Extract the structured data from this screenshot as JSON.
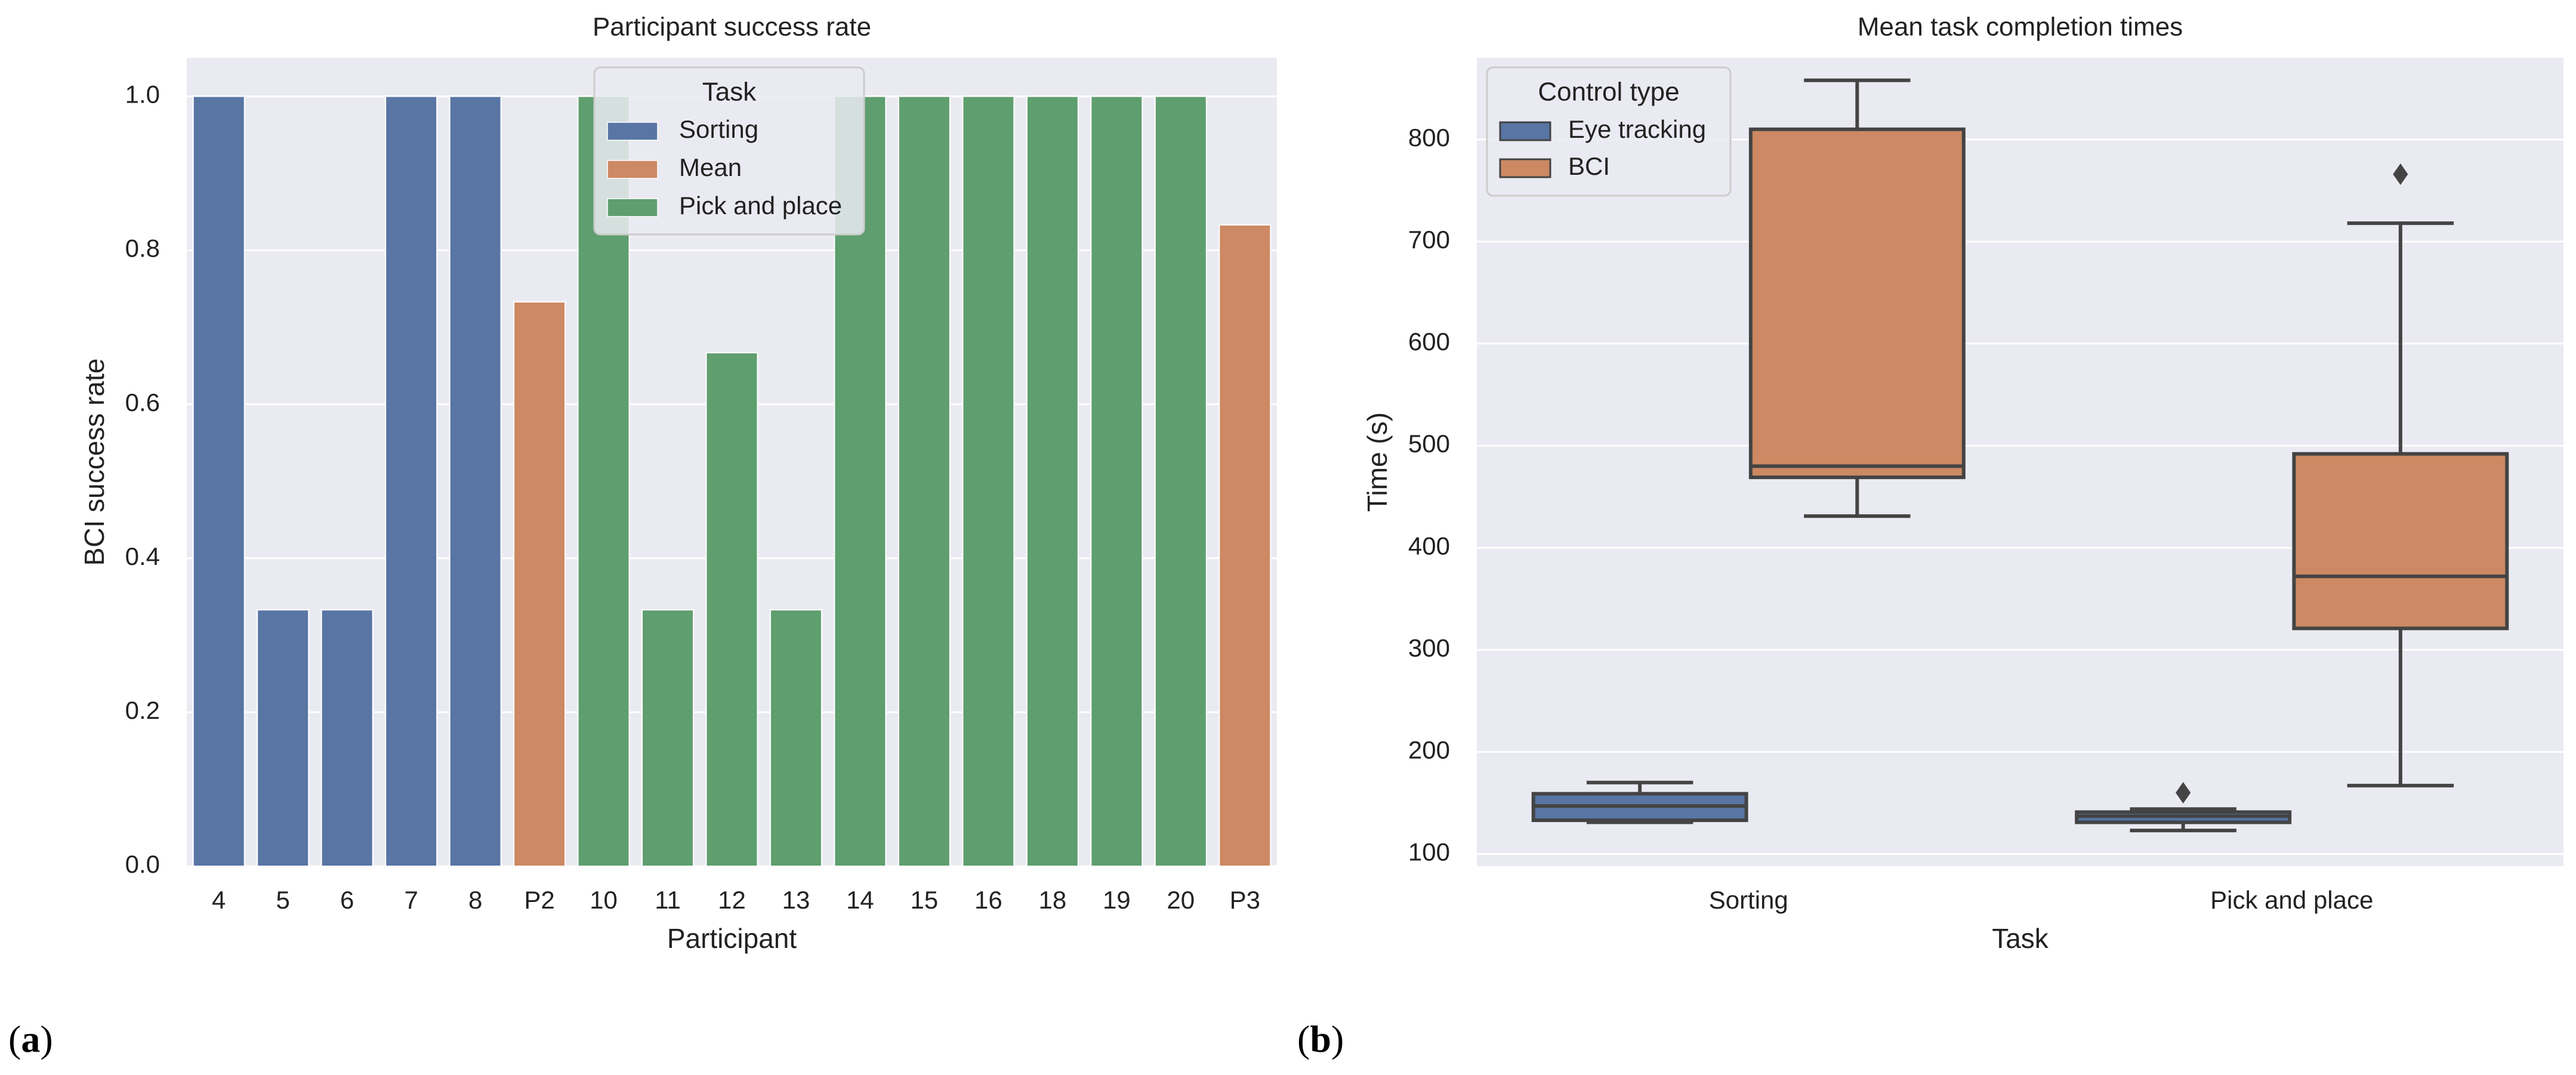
{
  "colors": {
    "sorting": "#5875a4",
    "mean": "#cc8963",
    "pick_place": "#5f9e6e",
    "eye_tracking": "#5875a4",
    "bci": "#cc8963",
    "background": "#eaeaf2",
    "grid": "#ffffff",
    "box_line": "#444444"
  },
  "panel_labels": {
    "a": "a",
    "b": "b"
  },
  "chart_data": [
    {
      "type": "bar",
      "title": "Participant success rate",
      "xlabel": "Participant",
      "ylabel": "BCI success rate",
      "ylim": [
        0,
        1.05
      ],
      "yticks": [
        0.0,
        0.2,
        0.4,
        0.6,
        0.8,
        1.0
      ],
      "ytick_labels": [
        "0.0",
        "0.2",
        "0.4",
        "0.6",
        "0.8",
        "1.0"
      ],
      "categories": [
        "4",
        "5",
        "6",
        "7",
        "8",
        "P2",
        "10",
        "11",
        "12",
        "13",
        "14",
        "15",
        "16",
        "18",
        "19",
        "20",
        "P3"
      ],
      "values": [
        1.0,
        0.333,
        0.333,
        1.0,
        1.0,
        0.733,
        1.0,
        0.333,
        0.667,
        0.333,
        1.0,
        1.0,
        1.0,
        1.0,
        1.0,
        1.0,
        0.833
      ],
      "groups": [
        "Sorting",
        "Sorting",
        "Sorting",
        "Sorting",
        "Sorting",
        "Mean",
        "Pick and place",
        "Pick and place",
        "Pick and place",
        "Pick and place",
        "Pick and place",
        "Pick and place",
        "Pick and place",
        "Pick and place",
        "Pick and place",
        "Pick and place",
        "Mean"
      ],
      "legend": {
        "title": "Task",
        "placement": "top-center",
        "entries": [
          "Sorting",
          "Mean",
          "Pick and place"
        ]
      }
    },
    {
      "type": "box",
      "title": "Mean task completion times",
      "xlabel": "Task",
      "ylabel": "Time (s)",
      "ylim": [
        88,
        880
      ],
      "yticks": [
        100,
        200,
        300,
        400,
        500,
        600,
        700,
        800
      ],
      "ytick_labels": [
        "100",
        "200",
        "300",
        "400",
        "500",
        "600",
        "700",
        "800"
      ],
      "categories": [
        "Sorting",
        "Pick and place"
      ],
      "series": [
        {
          "name": "Eye tracking",
          "boxes": [
            {
              "whisker_low": 131,
              "q1": 133,
              "median": 147,
              "q3": 159,
              "whisker_high": 170,
              "outliers": []
            },
            {
              "whisker_low": 123,
              "q1": 131,
              "median": 137,
              "q3": 141,
              "whisker_high": 144,
              "outliers": [
                160
              ]
            }
          ]
        },
        {
          "name": "BCI",
          "boxes": [
            {
              "whisker_low": 431,
              "q1": 469,
              "median": 480,
              "q3": 810,
              "whisker_high": 858,
              "outliers": []
            },
            {
              "whisker_low": 167,
              "q1": 321,
              "median": 372,
              "q3": 492,
              "whisker_high": 718,
              "outliers": [
                766
              ]
            }
          ]
        }
      ],
      "legend": {
        "title": "Control type",
        "placement": "top-left",
        "entries": [
          "Eye tracking",
          "BCI"
        ]
      }
    }
  ]
}
